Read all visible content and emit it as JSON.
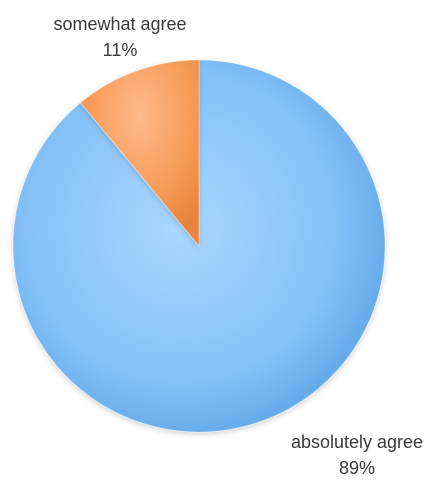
{
  "chart_data": {
    "type": "pie",
    "title": "",
    "categories": [
      "absolutely agree",
      "somewhat agree"
    ],
    "values": [
      89,
      11
    ],
    "value_labels": [
      "89%",
      "11%"
    ],
    "colors": [
      "#7fbdf6",
      "#f59a55"
    ],
    "start": "12 o'clock",
    "direction": "clockwise",
    "legend": "none",
    "labels": "outside"
  }
}
